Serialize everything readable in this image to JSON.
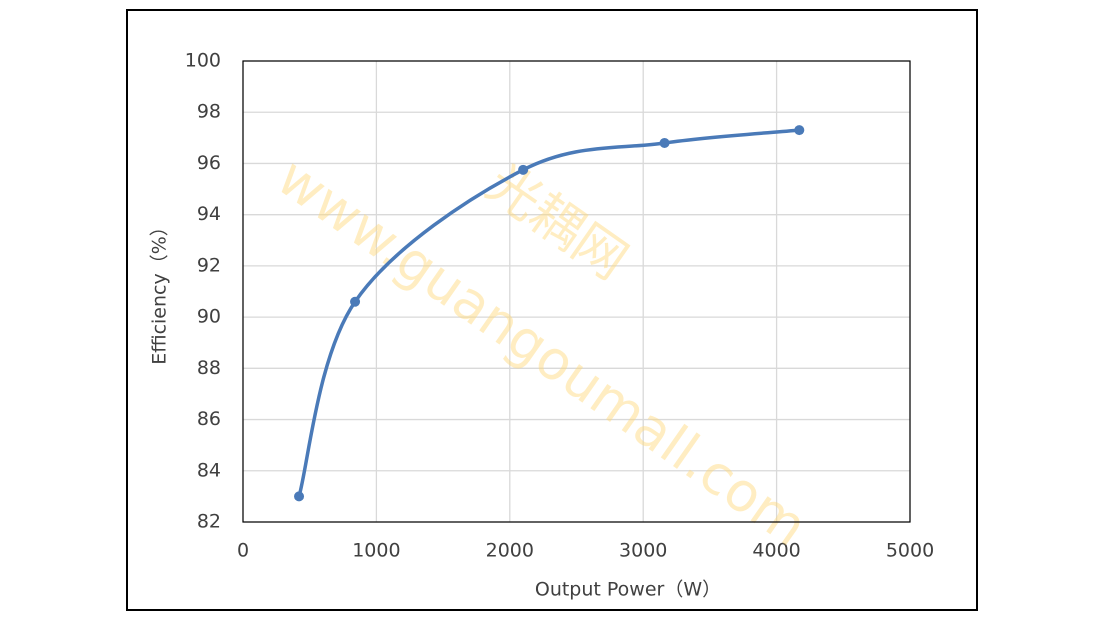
{
  "chart_data": {
    "type": "line",
    "x": [
      420,
      840,
      2100,
      3160,
      4170
    ],
    "series": [
      {
        "color": "#4a7ab8",
        "values": [
          83.0,
          90.6,
          95.75,
          96.8,
          97.3
        ]
      }
    ],
    "x_label": "Output Power（W）",
    "y_label": "Efficiency（%）",
    "xlim": [
      0,
      5000
    ],
    "xticks": [
      0,
      1000,
      2000,
      3000,
      4000,
      5000
    ],
    "ylim": [
      82,
      100
    ],
    "yticks": [
      82,
      84,
      86,
      88,
      90,
      92,
      94,
      96,
      98,
      100
    ],
    "grid": true,
    "smooth": true,
    "markers": true,
    "watermarks": [
      "光耦网",
      "www.guangoumall.com"
    ]
  }
}
